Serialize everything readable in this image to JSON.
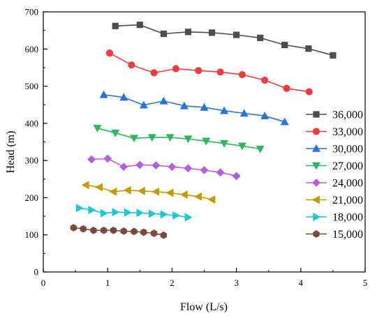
{
  "chart_data": {
    "type": "line",
    "xlabel": "Flow (L/s)",
    "ylabel": "Head (m)",
    "xlim": [
      0,
      5
    ],
    "ylim": [
      0,
      700
    ],
    "xticks": [
      "0",
      "1",
      "2",
      "3",
      "4",
      "5"
    ],
    "yticks": [
      "0",
      "100",
      "200",
      "300",
      "400",
      "500",
      "600",
      "700"
    ],
    "grid": false,
    "legend_position": "right",
    "series": [
      {
        "name": "36,000",
        "color": "#4d4d4d",
        "marker": "square",
        "x": [
          1.12,
          1.5,
          1.87,
          2.25,
          2.62,
          3.0,
          3.37,
          3.75,
          4.12,
          4.5
        ],
        "y": [
          662,
          665,
          641,
          646,
          644,
          638,
          630,
          611,
          601,
          583
        ]
      },
      {
        "name": "33,000",
        "color": "#f03c3c",
        "marker": "circle",
        "x": [
          1.03,
          1.37,
          1.72,
          2.06,
          2.41,
          2.75,
          3.09,
          3.44,
          3.78,
          4.13
        ],
        "y": [
          589,
          557,
          536,
          547,
          542,
          538,
          531,
          516,
          494,
          485
        ]
      },
      {
        "name": "30,000",
        "color": "#2673d9",
        "marker": "triangle-up",
        "x": [
          0.94,
          1.25,
          1.56,
          1.87,
          2.19,
          2.5,
          2.81,
          3.12,
          3.44,
          3.75
        ],
        "y": [
          477,
          470,
          449,
          460,
          447,
          443,
          434,
          427,
          420,
          404
        ]
      },
      {
        "name": "27,000",
        "color": "#2eb85c",
        "marker": "triangle-down",
        "x": [
          0.84,
          1.12,
          1.41,
          1.69,
          1.97,
          2.25,
          2.53,
          2.81,
          3.09,
          3.37
        ],
        "y": [
          387,
          374,
          360,
          362,
          362,
          358,
          352,
          346,
          339,
          331
        ]
      },
      {
        "name": "24,000",
        "color": "#b45de0",
        "marker": "diamond",
        "x": [
          0.75,
          1.0,
          1.25,
          1.5,
          1.75,
          2.0,
          2.25,
          2.5,
          2.75,
          3.0
        ],
        "y": [
          303,
          305,
          283,
          288,
          287,
          283,
          279,
          274,
          268,
          258
        ]
      },
      {
        "name": "21,000",
        "color": "#c49a00",
        "marker": "triangle-left",
        "x": [
          0.66,
          0.87,
          1.09,
          1.31,
          1.53,
          1.75,
          1.97,
          2.19,
          2.41,
          2.62
        ],
        "y": [
          234,
          228,
          216,
          220,
          218,
          216,
          213,
          208,
          203,
          195
        ]
      },
      {
        "name": "18,000",
        "color": "#19c8d2",
        "marker": "triangle-right",
        "x": [
          0.56,
          0.75,
          0.94,
          1.12,
          1.31,
          1.5,
          1.69,
          1.87,
          2.06,
          2.25
        ],
        "y": [
          172,
          167,
          158,
          161,
          160,
          159,
          157,
          155,
          152,
          147
        ]
      },
      {
        "name": "15,000",
        "color": "#7a4b3c",
        "marker": "hexagon",
        "x": [
          0.47,
          0.62,
          0.78,
          0.94,
          1.09,
          1.25,
          1.41,
          1.56,
          1.72,
          1.87
        ],
        "y": [
          119,
          116,
          112,
          112,
          112,
          110,
          109,
          107,
          104,
          99
        ]
      }
    ]
  }
}
